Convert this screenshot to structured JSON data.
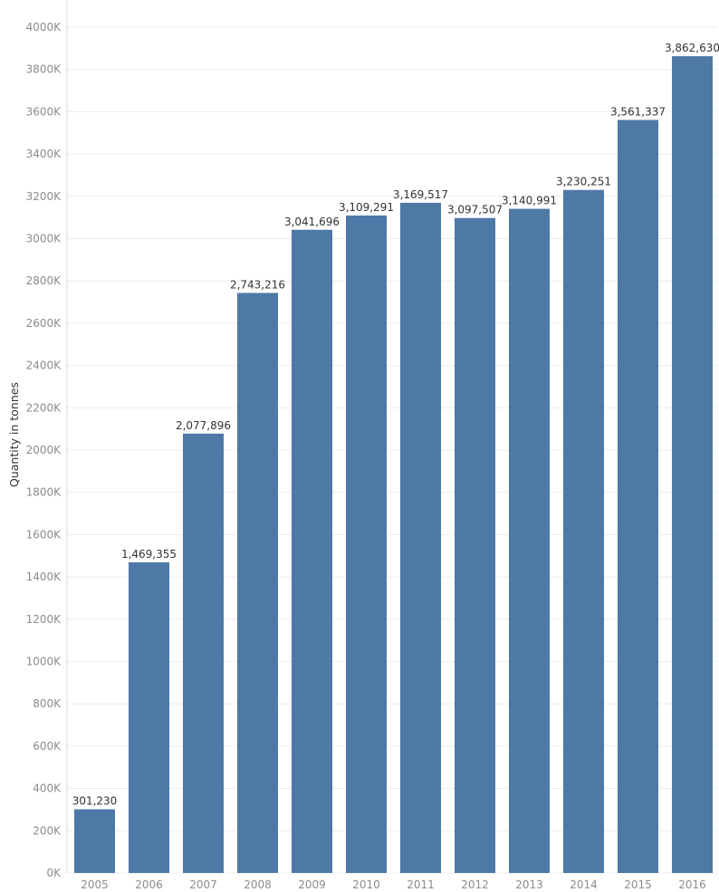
{
  "chart_data": {
    "type": "bar",
    "ylabel": "Quantity in tonnes",
    "xlabel": "",
    "ylim": [
      0,
      4000000
    ],
    "grid": true,
    "color": "#4e79a7",
    "yticks": [
      0,
      200000,
      400000,
      600000,
      800000,
      1000000,
      1200000,
      1400000,
      1600000,
      1800000,
      2000000,
      2200000,
      2400000,
      2600000,
      2800000,
      3000000,
      3200000,
      3400000,
      3600000,
      3800000,
      4000000
    ],
    "ytick_labels": [
      "0K",
      "200K",
      "400K",
      "600K",
      "800K",
      "1000K",
      "1200K",
      "1400K",
      "1600K",
      "1800K",
      "2000K",
      "2200K",
      "2400K",
      "2600K",
      "2800K",
      "3000K",
      "3200K",
      "3400K",
      "3600K",
      "3800K",
      "4000K"
    ],
    "categories": [
      "2005",
      "2006",
      "2007",
      "2008",
      "2009",
      "2010",
      "2011",
      "2012",
      "2013",
      "2014",
      "2015",
      "2016"
    ],
    "values": [
      301230,
      1469355,
      2077896,
      2743216,
      3041696,
      3109291,
      3169517,
      3097507,
      3140991,
      3230251,
      3561337,
      3862630
    ],
    "data_labels": [
      "301,230",
      "1,469,355",
      "2,077,896",
      "2,743,216",
      "3,041,696",
      "3,109,291",
      "3,169,517",
      "3,097,507",
      "3,140,991",
      "3,230,251",
      "3,561,337",
      "3,862,630"
    ]
  }
}
